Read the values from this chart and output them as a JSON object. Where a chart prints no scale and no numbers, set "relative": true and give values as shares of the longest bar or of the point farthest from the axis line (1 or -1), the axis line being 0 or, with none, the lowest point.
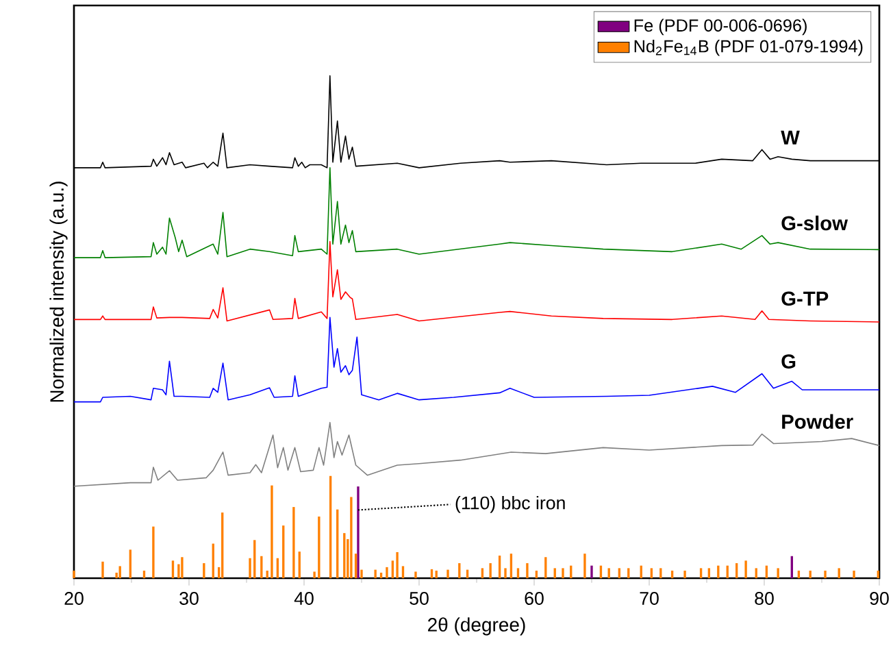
{
  "chart_data": [
    {
      "type": "line",
      "relative": true,
      "xlabel": "2θ (degree)",
      "ylabel": "Normalized intensity (a.u.)",
      "xlim": [
        20,
        90
      ],
      "xticks": [
        20,
        30,
        40,
        50,
        60,
        70,
        80,
        90
      ],
      "series": [
        {
          "name": "W",
          "color": "#000000",
          "x": [
            20,
            22.3,
            22.5,
            22.7,
            26.7,
            26.9,
            27.2,
            27.7,
            28.0,
            28.3,
            28.7,
            29.4,
            29.7,
            31.3,
            31.6,
            32.1,
            32.5,
            32.95,
            33.3,
            35.3,
            37.0,
            39.0,
            39.2,
            39.5,
            39.8,
            40.1,
            40.5,
            41.5,
            42.0,
            42.25,
            42.5,
            42.9,
            43.2,
            43.6,
            43.9,
            44.2,
            44.5,
            48.1,
            50,
            53.6,
            57.0,
            57.9,
            61.5,
            66.3,
            69.3,
            74,
            76.3,
            79.0,
            79.8,
            80.5,
            81.2,
            82.4,
            84,
            90
          ],
          "values": [
            0.817,
            0.817,
            0.828,
            0.817,
            0.82,
            0.834,
            0.82,
            0.837,
            0.823,
            0.847,
            0.823,
            0.828,
            0.817,
            0.826,
            0.817,
            0.828,
            0.82,
            0.886,
            0.817,
            0.823,
            0.82,
            0.817,
            0.837,
            0.82,
            0.828,
            0.817,
            0.823,
            0.823,
            0.817,
            1.0,
            0.828,
            0.91,
            0.828,
            0.88,
            0.834,
            0.858,
            0.82,
            0.826,
            0.817,
            0.826,
            0.831,
            0.828,
            0.831,
            0.823,
            0.826,
            0.826,
            0.834,
            0.831,
            0.853,
            0.834,
            0.839,
            0.834,
            0.831,
            0.831
          ]
        },
        {
          "name": "G-slow",
          "color": "#008000",
          "x": [
            20,
            22.3,
            22.5,
            22.7,
            26.7,
            26.9,
            27.2,
            27.7,
            28.0,
            28.3,
            28.8,
            29.1,
            29.4,
            29.8,
            32.1,
            32.5,
            32.95,
            33.3,
            35.3,
            37.0,
            39.0,
            39.2,
            39.5,
            41.5,
            42.0,
            42.25,
            42.5,
            42.9,
            43.2,
            43.6,
            43.9,
            44.2,
            44.5,
            48.1,
            50,
            57.0,
            57.9,
            61.5,
            66,
            72,
            76.3,
            78,
            79.8,
            80.5,
            81.2,
            84,
            90
          ],
          "values": [
            0.638,
            0.638,
            0.652,
            0.638,
            0.64,
            0.668,
            0.645,
            0.659,
            0.645,
            0.717,
            0.678,
            0.65,
            0.673,
            0.64,
            0.665,
            0.645,
            0.728,
            0.64,
            0.655,
            0.65,
            0.642,
            0.682,
            0.65,
            0.655,
            0.645,
            0.817,
            0.665,
            0.75,
            0.665,
            0.703,
            0.668,
            0.692,
            0.65,
            0.655,
            0.645,
            0.665,
            0.668,
            0.662,
            0.655,
            0.65,
            0.665,
            0.655,
            0.682,
            0.665,
            0.668,
            0.655,
            0.654
          ]
        },
        {
          "name": "G-TP",
          "color": "#ff0000",
          "x": [
            20,
            22.3,
            22.5,
            22.7,
            26.7,
            26.9,
            27.2,
            28.3,
            29.4,
            31.8,
            32.1,
            32.5,
            32.95,
            33.3,
            37.0,
            37.3,
            39.0,
            39.2,
            39.5,
            41.5,
            42.0,
            42.25,
            42.5,
            42.9,
            43.2,
            43.6,
            44.0,
            44.2,
            44.5,
            48.1,
            50,
            57.0,
            57.9,
            61.5,
            66,
            72,
            76.3,
            79.2,
            79.8,
            80.4,
            84,
            90
          ],
          "values": [
            0.515,
            0.515,
            0.522,
            0.515,
            0.515,
            0.54,
            0.518,
            0.519,
            0.519,
            0.517,
            0.535,
            0.518,
            0.578,
            0.512,
            0.534,
            0.515,
            0.517,
            0.557,
            0.517,
            0.53,
            0.517,
            0.67,
            0.56,
            0.614,
            0.555,
            0.57,
            0.559,
            0.556,
            0.515,
            0.525,
            0.512,
            0.529,
            0.531,
            0.522,
            0.517,
            0.515,
            0.522,
            0.515,
            0.532,
            0.515,
            0.512,
            0.51
          ]
        },
        {
          "name": "G",
          "color": "#0000ff",
          "x": [
            20,
            22.3,
            22.5,
            24.9,
            26.7,
            26.9,
            27.7,
            28.0,
            28.3,
            28.7,
            29.4,
            31.8,
            32.1,
            32.5,
            32.95,
            33.4,
            35.3,
            37.0,
            37.4,
            39.0,
            39.2,
            39.5,
            41.5,
            42.0,
            42.25,
            42.6,
            42.9,
            43.2,
            43.6,
            43.9,
            44.2,
            44.6,
            45.0,
            46.5,
            48.1,
            50,
            53,
            57.0,
            57.9,
            60,
            66.3,
            70,
            75.5,
            77.5,
            79.8,
            80.8,
            82.4,
            83.3,
            90
          ],
          "values": [
            0.351,
            0.351,
            0.36,
            0.362,
            0.355,
            0.378,
            0.375,
            0.365,
            0.432,
            0.362,
            0.362,
            0.36,
            0.378,
            0.37,
            0.428,
            0.355,
            0.365,
            0.379,
            0.36,
            0.362,
            0.403,
            0.362,
            0.378,
            0.38,
            0.519,
            0.42,
            0.457,
            0.41,
            0.423,
            0.405,
            0.414,
            0.48,
            0.365,
            0.355,
            0.368,
            0.355,
            0.36,
            0.369,
            0.378,
            0.36,
            0.362,
            0.364,
            0.382,
            0.37,
            0.407,
            0.378,
            0.392,
            0.375,
            0.375
          ]
        },
        {
          "name": "Powder",
          "color": "#808080",
          "x": [
            20,
            24.9,
            26.7,
            26.9,
            27.3,
            28.3,
            29.0,
            31.5,
            32.1,
            32.95,
            33.4,
            35.3,
            35.8,
            36.3,
            37.3,
            37.7,
            38.2,
            38.6,
            39.2,
            39.7,
            40.8,
            41.3,
            41.7,
            42.25,
            42.6,
            42.9,
            43.3,
            43.9,
            44.5,
            45.5,
            48.1,
            50,
            53.6,
            58.0,
            61.0,
            66,
            70,
            76.3,
            79.0,
            79.8,
            80.8,
            82,
            85,
            87.6,
            90
          ],
          "values": [
            0.183,
            0.19,
            0.19,
            0.221,
            0.195,
            0.214,
            0.195,
            0.2,
            0.215,
            0.251,
            0.205,
            0.21,
            0.226,
            0.21,
            0.285,
            0.22,
            0.26,
            0.215,
            0.26,
            0.212,
            0.215,
            0.26,
            0.225,
            0.31,
            0.24,
            0.272,
            0.245,
            0.285,
            0.225,
            0.205,
            0.225,
            0.228,
            0.235,
            0.251,
            0.248,
            0.26,
            0.255,
            0.264,
            0.265,
            0.287,
            0.268,
            0.269,
            0.272,
            0.278,
            0.264
          ]
        }
      ]
    },
    {
      "type": "bar",
      "relative": true,
      "xlim": [
        20,
        90
      ],
      "tick_labels": false,
      "legend": "top right",
      "annotations": [
        {
          "text": "(110) bbc iron",
          "x": 44.7,
          "y": 0.667
        }
      ],
      "series": [
        {
          "name": "Fe (PDF 00-006-0696)",
          "color": "#800080",
          "x": [
            44.7,
            65.0,
            82.4
          ],
          "values": [
            0.897,
            0.123,
            0.216
          ]
        },
        {
          "name": "Nd$_{2}$Fe$_{14}$B (PDF 01-079-1994)",
          "color": "#ff8000",
          "x": [
            20.0,
            22.5,
            23.7,
            24.0,
            24.9,
            26.1,
            26.9,
            28.6,
            29.1,
            29.4,
            31.3,
            32.1,
            32.6,
            32.9,
            35.3,
            35.7,
            36.3,
            36.8,
            37.2,
            37.7,
            38.2,
            39.1,
            39.6,
            40.9,
            41.3,
            42.3,
            42.9,
            43.5,
            43.8,
            44.1,
            44.5,
            45.0,
            46.2,
            46.7,
            47.2,
            47.7,
            48.1,
            48.6,
            49.7,
            51.1,
            51.5,
            52.5,
            53.5,
            54.2,
            55.5,
            56.2,
            57.0,
            57.5,
            58.0,
            58.6,
            59.4,
            60.2,
            61.0,
            61.8,
            62.5,
            63.2,
            64.4,
            65.8,
            66.5,
            67.4,
            68.2,
            69.3,
            70.2,
            71.0,
            72.0,
            73.1,
            74.5,
            75.2,
            76.0,
            76.8,
            77.6,
            78.4,
            79.3,
            80.2,
            81.2,
            83.0,
            84.0,
            85.3,
            86.5,
            87.8,
            89.9
          ],
          "values": [
            0.074,
            0.162,
            0.054,
            0.118,
            0.279,
            0.074,
            0.505,
            0.172,
            0.137,
            0.206,
            0.147,
            0.338,
            0.108,
            0.642,
            0.196,
            0.373,
            0.216,
            0.074,
            0.907,
            0.196,
            0.515,
            0.696,
            0.26,
            0.064,
            0.603,
            1.0,
            0.672,
            0.441,
            0.382,
            0.794,
            0.24,
            0.083,
            0.083,
            0.054,
            0.108,
            0.172,
            0.255,
            0.118,
            0.064,
            0.088,
            0.074,
            0.083,
            0.147,
            0.083,
            0.098,
            0.147,
            0.221,
            0.098,
            0.24,
            0.098,
            0.147,
            0.074,
            0.206,
            0.098,
            0.098,
            0.123,
            0.24,
            0.123,
            0.098,
            0.098,
            0.098,
            0.123,
            0.098,
            0.098,
            0.074,
            0.074,
            0.098,
            0.098,
            0.123,
            0.123,
            0.147,
            0.172,
            0.098,
            0.123,
            0.098,
            0.074,
            0.074,
            0.074,
            0.098,
            0.074,
            0.074
          ]
        }
      ]
    }
  ]
}
